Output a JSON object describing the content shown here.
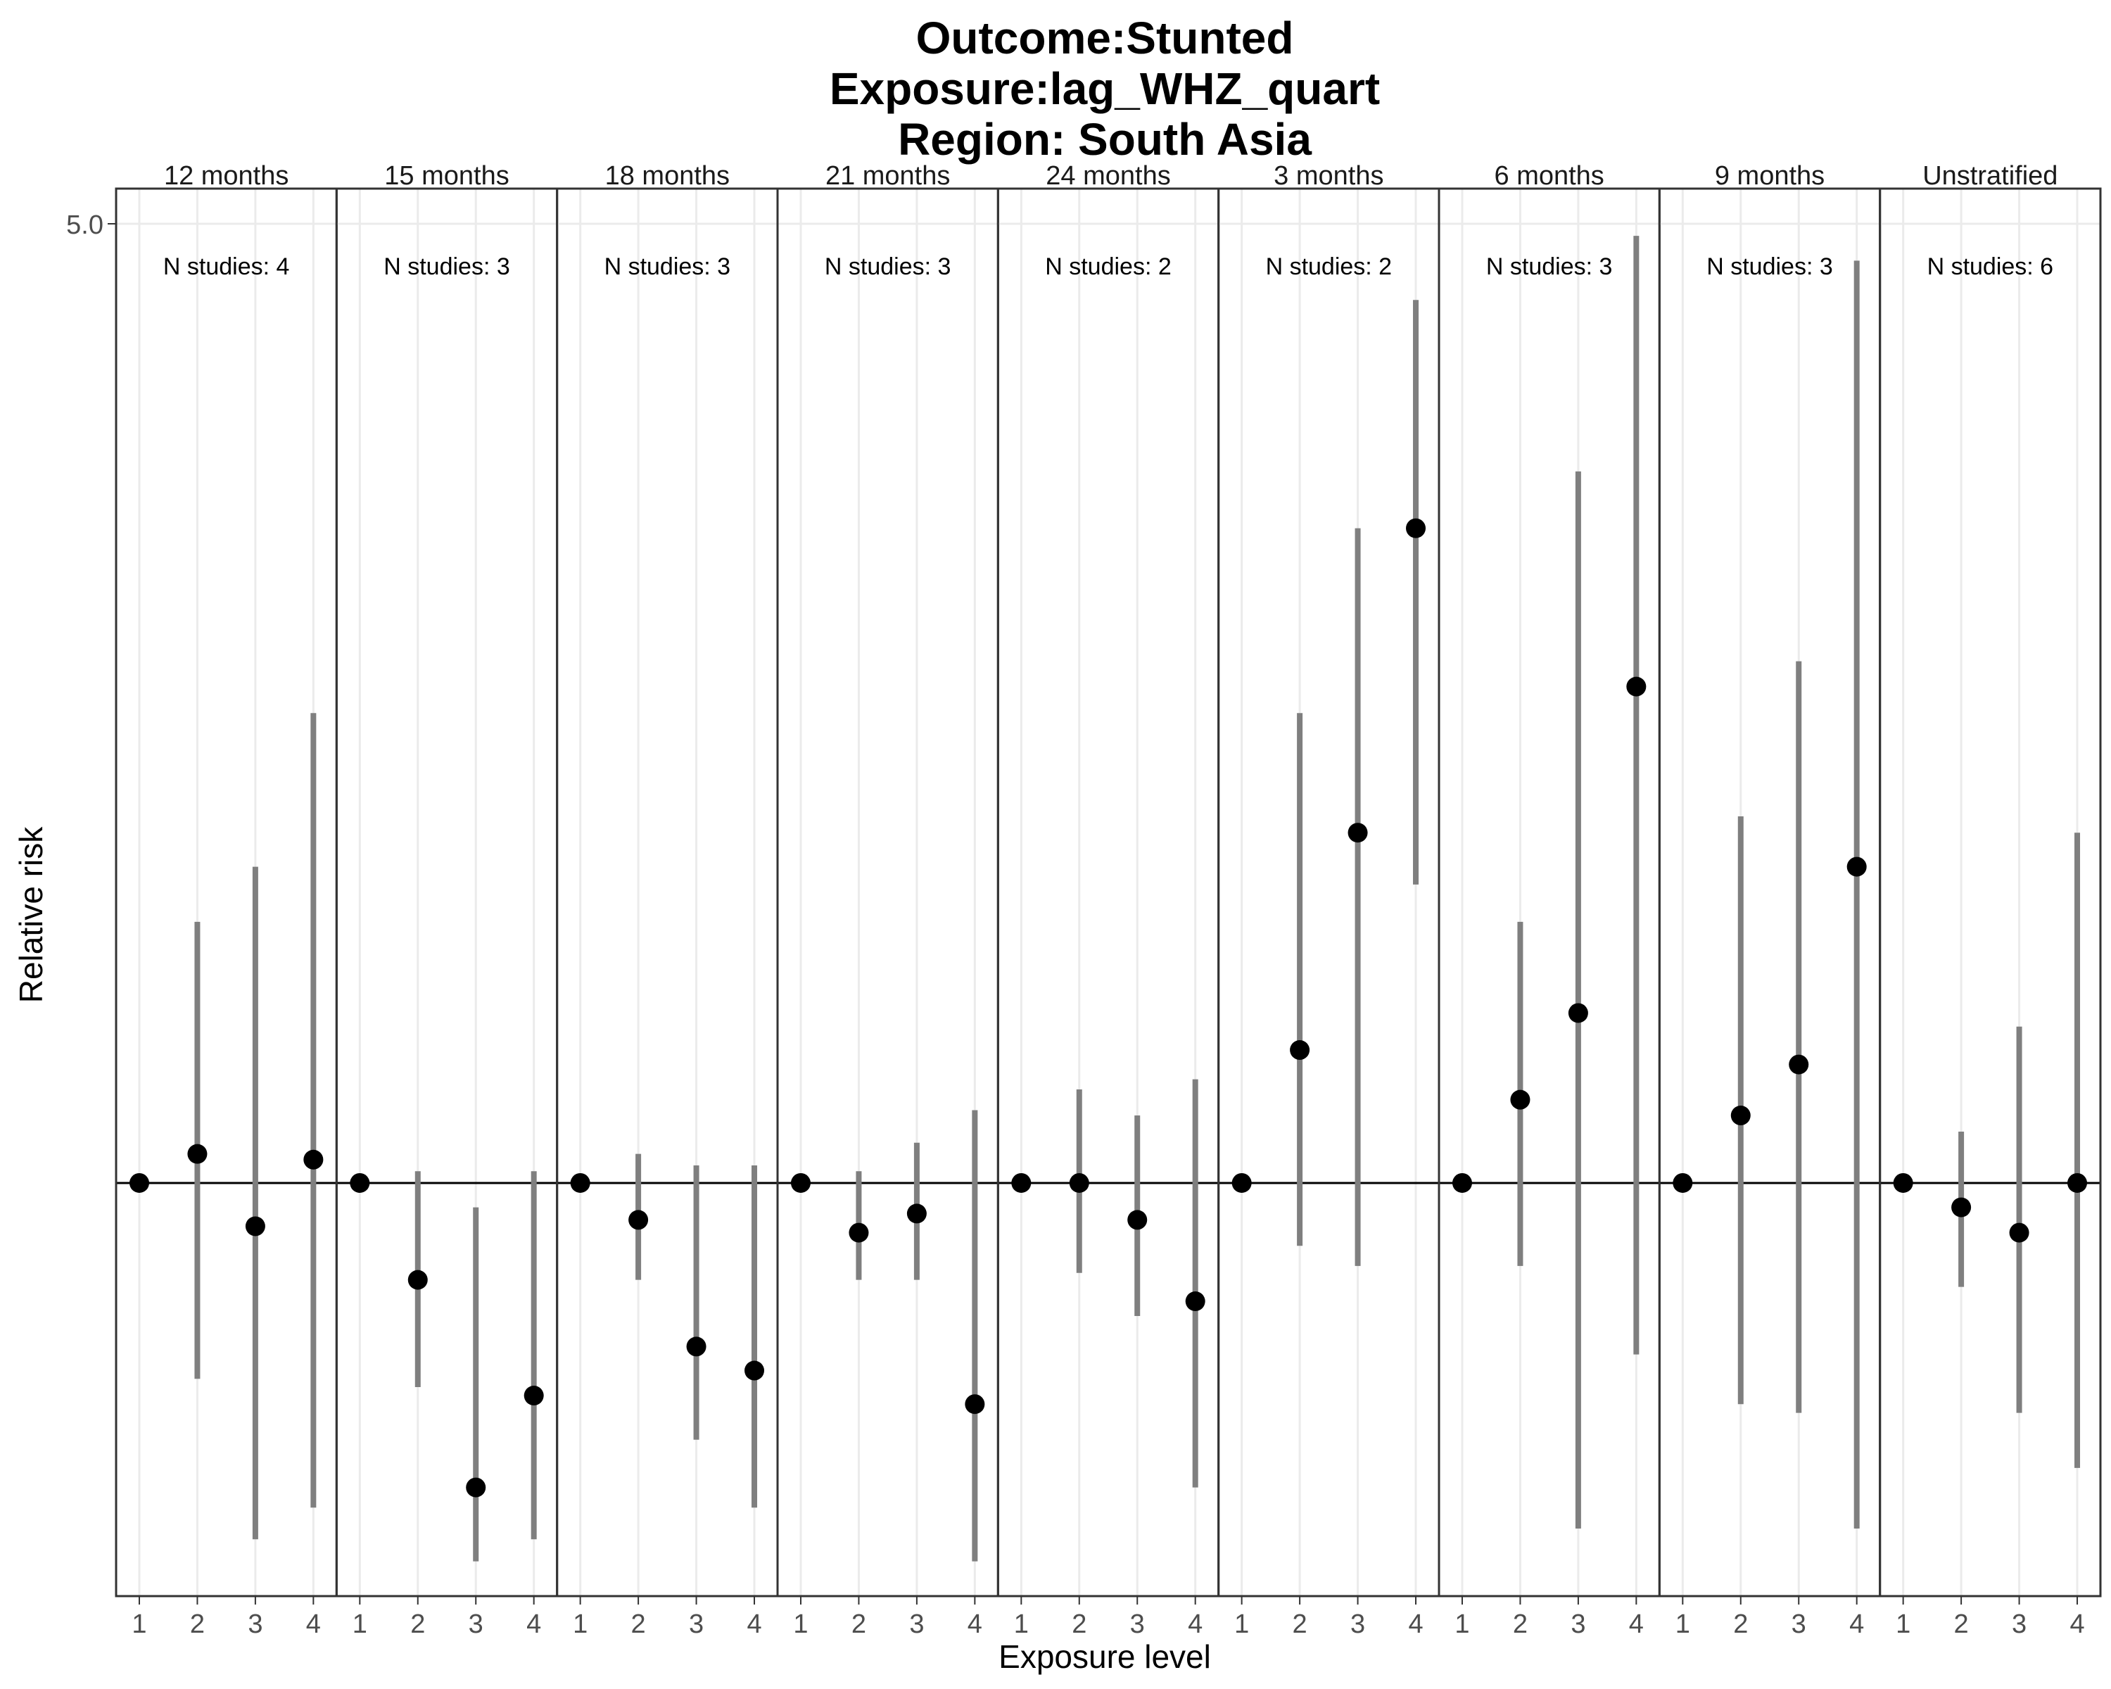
{
  "chart_data": {
    "type": "scatter",
    "title_lines": [
      "Outcome:Stunted",
      "Exposure:lag_WHZ_quart",
      "Region: South Asia"
    ],
    "xlabel": "Exposure level",
    "ylabel": "Relative risk",
    "y_ticks": [
      {
        "value": 5.0,
        "label": "5.0"
      }
    ],
    "ylim": [
      0.5,
      5.0
    ],
    "y_scale": "log",
    "reference_line": 1,
    "x_categories": [
      "1",
      "2",
      "3",
      "4"
    ],
    "grid": true,
    "colors": {
      "point": "#000000",
      "ci_line": "#7f7f7f",
      "reference": "#000000",
      "grid": "#ebebeb",
      "panel_border": "#333333"
    },
    "panels": [
      {
        "label": "12 months",
        "n_studies": "N studies: 4",
        "estimates": [
          1.0,
          1.05,
          0.93,
          1.04
        ],
        "lower": [
          1.0,
          0.72,
          0.55,
          0.58
        ],
        "upper": [
          1.0,
          1.55,
          1.7,
          2.2
        ]
      },
      {
        "label": "15 months",
        "n_studies": "N studies: 3",
        "estimates": [
          1.0,
          0.85,
          0.6,
          0.7
        ],
        "lower": [
          1.0,
          0.71,
          0.53,
          0.55
        ],
        "upper": [
          1.0,
          1.02,
          0.96,
          1.02
        ]
      },
      {
        "label": "18 months",
        "n_studies": "N studies: 3",
        "estimates": [
          1.0,
          0.94,
          0.76,
          0.73
        ],
        "lower": [
          1.0,
          0.85,
          0.65,
          0.58
        ],
        "upper": [
          1.0,
          1.05,
          1.03,
          1.03
        ]
      },
      {
        "label": "21 months",
        "n_studies": "N studies: 3",
        "estimates": [
          1.0,
          0.92,
          0.95,
          0.69
        ],
        "lower": [
          1.0,
          0.85,
          0.85,
          0.53
        ],
        "upper": [
          1.0,
          1.02,
          1.07,
          1.13
        ]
      },
      {
        "label": "24 months",
        "n_studies": "N studies: 2",
        "estimates": [
          1.0,
          1.0,
          0.94,
          0.82
        ],
        "lower": [
          1.0,
          0.86,
          0.8,
          0.6
        ],
        "upper": [
          1.0,
          1.17,
          1.12,
          1.19
        ]
      },
      {
        "label": "3 months",
        "n_studies": "N studies: 2",
        "estimates": [
          1.0,
          1.25,
          1.8,
          3.0
        ],
        "lower": [
          1.0,
          0.9,
          0.87,
          1.65
        ],
        "upper": [
          1.0,
          2.2,
          3.0,
          4.4
        ]
      },
      {
        "label": "6 months",
        "n_studies": "N studies: 3",
        "estimates": [
          1.0,
          1.15,
          1.33,
          2.3
        ],
        "lower": [
          1.0,
          0.87,
          0.56,
          0.75
        ],
        "upper": [
          1.0,
          1.55,
          3.3,
          4.9
        ]
      },
      {
        "label": "9 months",
        "n_studies": "N studies: 3",
        "estimates": [
          1.0,
          1.12,
          1.22,
          1.7
        ],
        "lower": [
          1.0,
          0.69,
          0.68,
          0.56
        ],
        "upper": [
          1.0,
          1.85,
          2.4,
          4.7
        ]
      },
      {
        "label": "Unstratified",
        "n_studies": "N studies: 6",
        "estimates": [
          1.0,
          0.96,
          0.92,
          1.0
        ],
        "lower": [
          1.0,
          0.84,
          0.68,
          0.62
        ],
        "upper": [
          1.0,
          1.09,
          1.3,
          1.8
        ]
      }
    ]
  }
}
